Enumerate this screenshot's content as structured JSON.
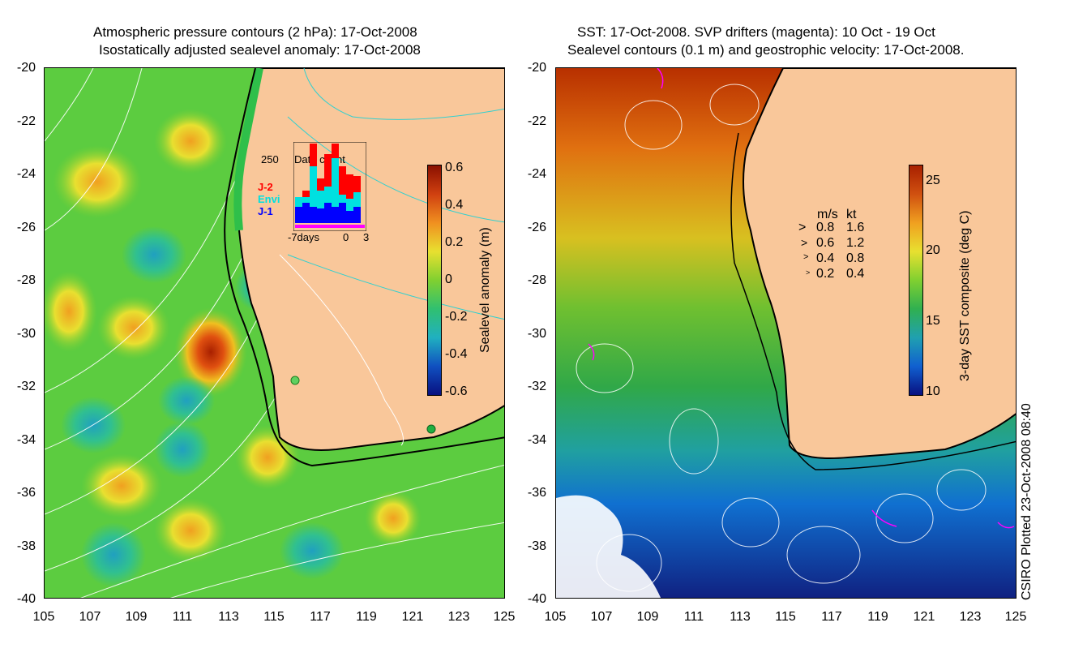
{
  "left_panel": {
    "title_line1": "Atmospheric pressure contours (2 hPa): 17-Oct-2008",
    "title_line2": "Isostatically adjusted sealevel anomaly: 17-Oct-2008",
    "colorbar_label": "Sealevel anomaly (m)",
    "colorbar_ticks": [
      "0.6",
      "0.4",
      "0.2",
      "0",
      "-0.2",
      "-0.4",
      "-0.6"
    ],
    "inset": {
      "count_label": "250",
      "title": "Data count",
      "legend": [
        "J-2",
        "Envi",
        "J-1"
      ],
      "legend_colors": [
        "#ff0000",
        "#00e0e0",
        "#0000ff"
      ],
      "x_labels": [
        "-7days",
        "0",
        "3"
      ]
    }
  },
  "right_panel": {
    "title_line1": "SST: 17-Oct-2008. SVP drifters (magenta): 10 Oct - 19 Oct",
    "title_line2": "Sealevel contours (0.1 m) and geostrophic velocity: 17-Oct-2008.",
    "colorbar_label": "3-day SST composite (deg C)",
    "colorbar_ticks": [
      "25",
      "20",
      "15",
      "10"
    ],
    "velocity_legend": {
      "header_ms": "m/s",
      "header_kt": "kt",
      "rows": [
        {
          "ms": "0.8",
          "kt": "1.6"
        },
        {
          "ms": "0.6",
          "kt": "1.2"
        },
        {
          "ms": "0.4",
          "kt": "0.8"
        },
        {
          "ms": "0.2",
          "kt": "0.4"
        }
      ]
    }
  },
  "axes": {
    "x_ticks": [
      "105",
      "107",
      "109",
      "111",
      "113",
      "115",
      "117",
      "119",
      "121",
      "123",
      "125"
    ],
    "y_ticks": [
      "-20",
      "-22",
      "-24",
      "-26",
      "-28",
      "-30",
      "-32",
      "-34",
      "-36",
      "-38",
      "-40"
    ]
  },
  "credit": "CSIRO Plotted 23-Oct-2008 08:40",
  "colors": {
    "land": "#f9c79a",
    "coastline": "#000000",
    "sla_high": "#a82000",
    "sla_mid": "#40c840",
    "sst_warm": "#a83000",
    "sst_cold": "#102080",
    "drifter": "#ff00ff"
  }
}
